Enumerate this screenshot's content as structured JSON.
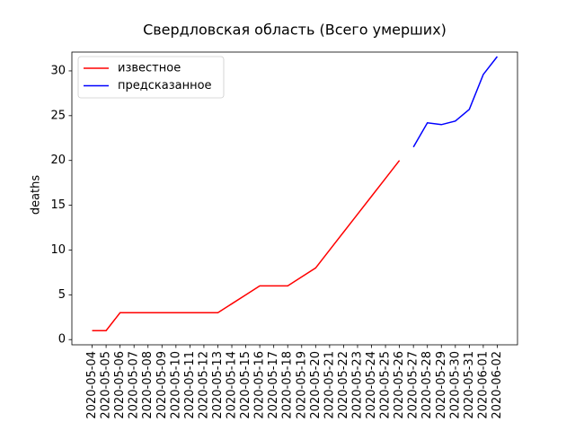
{
  "chart_data": {
    "type": "line",
    "title": "Свердловская область (Всего умерших)",
    "ylabel": "deaths",
    "categories": [
      "2020-05-04",
      "2020-05-05",
      "2020-05-06",
      "2020-05-07",
      "2020-05-08",
      "2020-05-09",
      "2020-05-10",
      "2020-05-11",
      "2020-05-12",
      "2020-05-13",
      "2020-05-14",
      "2020-05-15",
      "2020-05-16",
      "2020-05-17",
      "2020-05-18",
      "2020-05-19",
      "2020-05-20",
      "2020-05-21",
      "2020-05-22",
      "2020-05-23",
      "2020-05-24",
      "2020-05-25",
      "2020-05-26",
      "2020-05-27",
      "2020-05-28",
      "2020-05-29",
      "2020-05-30",
      "2020-05-31",
      "2020-06-01",
      "2020-06-02"
    ],
    "series": [
      {
        "name": "известное",
        "color": "#ff0000",
        "values": [
          1,
          1,
          3,
          3,
          3,
          3,
          3,
          3,
          3,
          3,
          4,
          5,
          6,
          6,
          6,
          7,
          8,
          10,
          12,
          14,
          16,
          18,
          20,
          null,
          null,
          null,
          null,
          null,
          null,
          null
        ]
      },
      {
        "name": "предсказанное",
        "color": "#0000ff",
        "values": [
          null,
          null,
          null,
          null,
          null,
          null,
          null,
          null,
          null,
          null,
          null,
          null,
          null,
          null,
          null,
          null,
          null,
          null,
          null,
          null,
          null,
          null,
          null,
          21.5,
          24.2,
          24.0,
          24.4,
          25.7,
          29.6,
          31.6
        ]
      }
    ],
    "ylim": [
      -0.58,
      32.1
    ],
    "yticks": [
      0,
      5,
      10,
      15,
      20,
      25,
      30
    ],
    "legend": "upper left"
  }
}
